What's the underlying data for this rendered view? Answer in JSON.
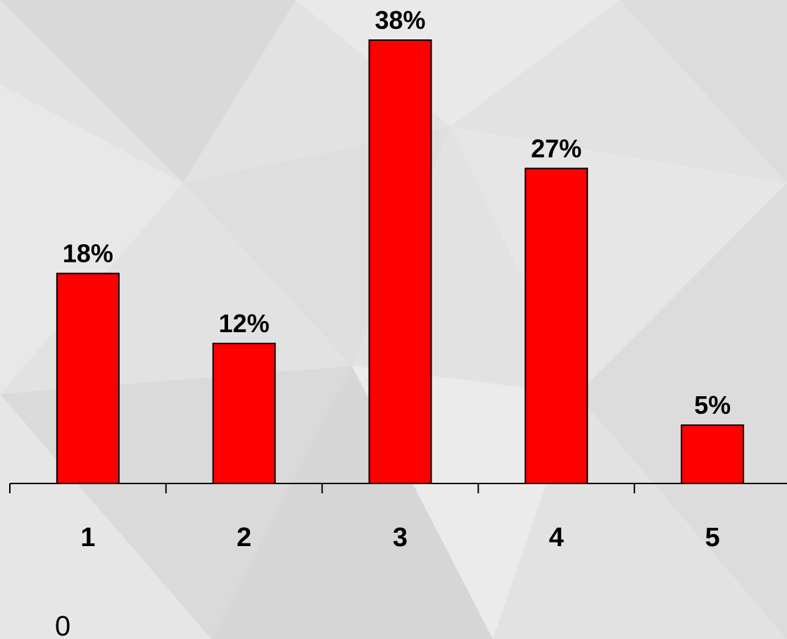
{
  "chart_data": {
    "type": "bar",
    "categories": [
      "1",
      "2",
      "3",
      "4",
      "5"
    ],
    "values": [
      18,
      12,
      38,
      27,
      5
    ],
    "data_labels": [
      "18%",
      "12%",
      "38%",
      "27%",
      "5%"
    ],
    "ylim": [
      0,
      38
    ],
    "grid": false,
    "bar_color": "#ff0000",
    "stray_text": "0"
  }
}
